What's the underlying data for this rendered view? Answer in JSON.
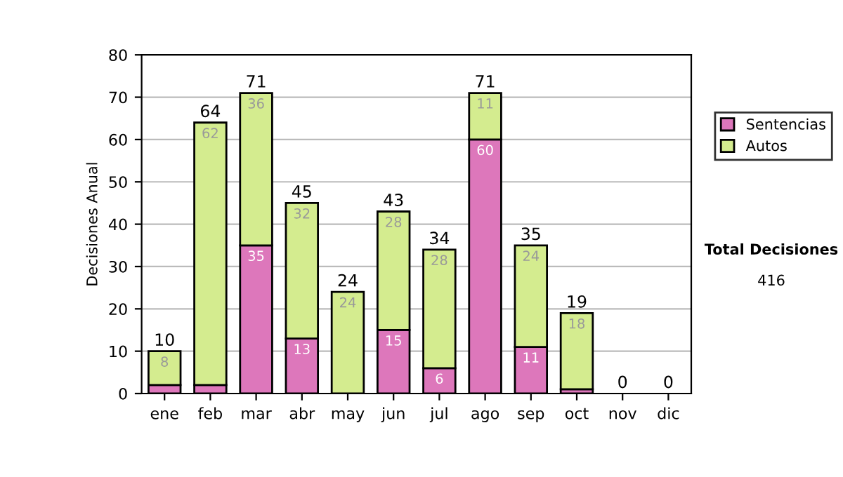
{
  "chart_data": {
    "type": "bar",
    "stacked": true,
    "ylabel": "Decisiones Anual",
    "categories": [
      "ene",
      "feb",
      "mar",
      "abr",
      "may",
      "jun",
      "jul",
      "ago",
      "sep",
      "oct",
      "nov",
      "dic"
    ],
    "series": [
      {
        "name": "Sentencias",
        "color": "#dd77bb",
        "values": [
          2,
          2,
          35,
          13,
          0,
          15,
          6,
          60,
          11,
          1,
          0,
          0
        ],
        "value_labels": [
          null,
          null,
          "35",
          "13",
          null,
          "15",
          "6",
          "60",
          "11",
          null,
          null,
          null
        ]
      },
      {
        "name": "Autos",
        "color": "#d4ec8f",
        "values": [
          8,
          62,
          36,
          32,
          24,
          28,
          28,
          11,
          24,
          18,
          0,
          0
        ],
        "value_labels": [
          "8",
          "62",
          "36",
          "32",
          "24",
          "28",
          "28",
          "11",
          "24",
          "18",
          null,
          null
        ]
      }
    ],
    "totals": [
      "10",
      "64",
      "71",
      "45",
      "24",
      "43",
      "34",
      "71",
      "35",
      "19",
      "0",
      "0"
    ],
    "ylim": [
      0,
      80
    ],
    "yticks": [
      0,
      10,
      20,
      30,
      40,
      50,
      60,
      70,
      80
    ],
    "grid": "y",
    "legend": "right",
    "annotations": [
      "Total Decisiones",
      "416"
    ]
  }
}
